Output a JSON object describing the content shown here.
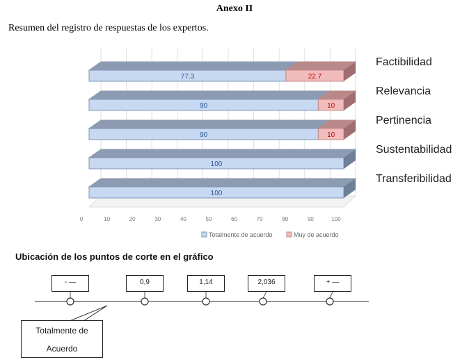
{
  "document": {
    "title": "Anexo II",
    "subtitle": "Resumen del registro de respuestas de los expertos.",
    "section_title": "Ubicación de los puntos de corte en el gráfico"
  },
  "criteria": [
    "Factibilidad",
    "Relevancia",
    "Pertinencia",
    "Sustentabilidad",
    "Transferibilidad"
  ],
  "chart_data": {
    "type": "bar",
    "orientation": "horizontal",
    "stacked": true,
    "categories": [
      "Factibilidad",
      "Relevancia",
      "Pertinencia",
      "Sustentabilidad",
      "Transferibilidad"
    ],
    "series": [
      {
        "name": "Totalmente de acuerdo",
        "values": [
          77.3,
          90,
          90,
          100,
          100
        ],
        "labels": [
          "77.3",
          "90",
          "90",
          "100",
          "100"
        ],
        "color": "#c7d8f1"
      },
      {
        "name": "Muy de acuerdo",
        "values": [
          22.7,
          10,
          10,
          0,
          0
        ],
        "labels": [
          "22.7",
          "10",
          "10",
          "",
          ""
        ],
        "color": "#f2bcbc"
      }
    ],
    "xticks": [
      0,
      10,
      20,
      30,
      40,
      50,
      60,
      70,
      80,
      90,
      100
    ],
    "xlim": [
      0,
      100
    ],
    "grid": true,
    "legend": "bottom",
    "colors": {
      "top_face": "#8c9bb2",
      "side_face": "#6e7f99",
      "red_top": "#b98888",
      "red_side": "#a06e6e",
      "label_blue": "#2f5597",
      "label_red": "#c00000"
    }
  },
  "cut_points": {
    "boxes": [
      "- —",
      "0,9",
      "1,14",
      "2,036",
      "+ —"
    ],
    "callout_line1": "Totalmente   de",
    "callout_line2": "Acuerdo"
  }
}
